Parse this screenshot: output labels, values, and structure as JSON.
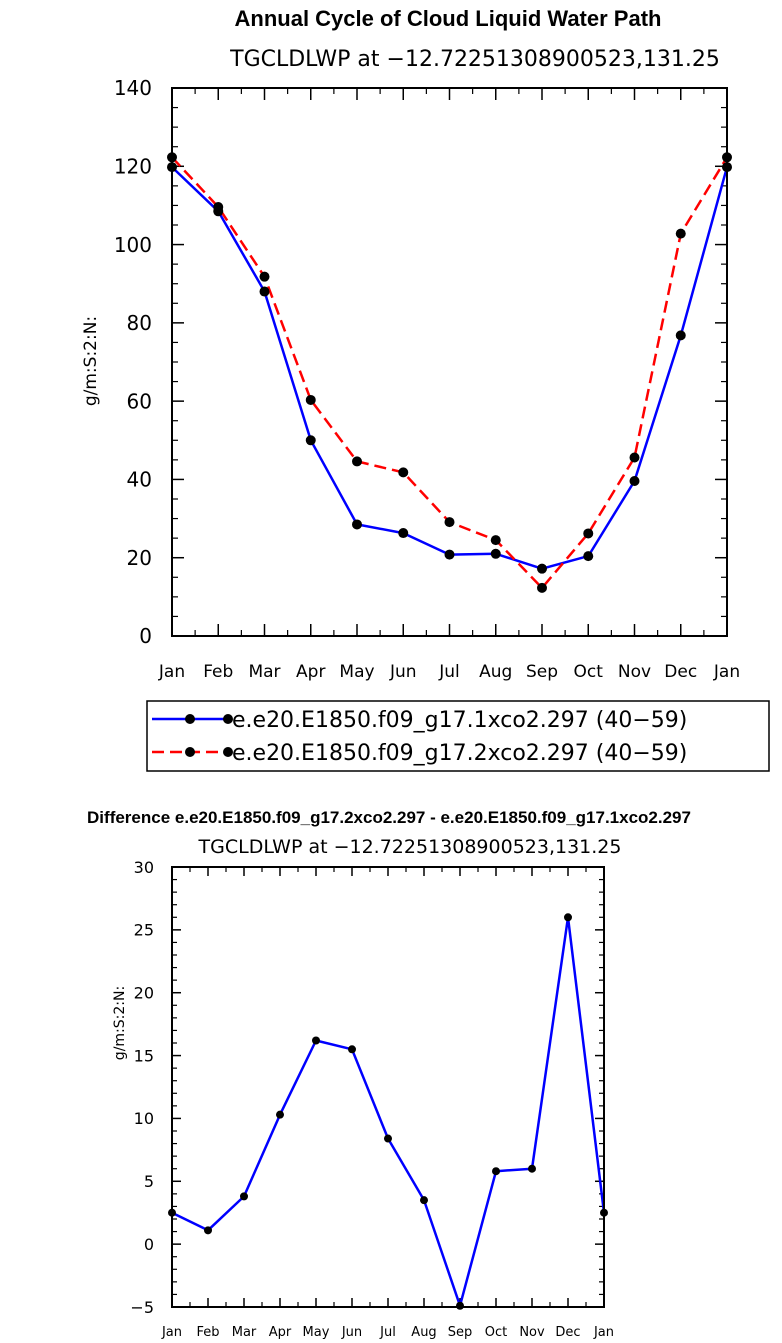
{
  "chart_data": [
    {
      "type": "line",
      "title": "Annual Cycle of Cloud Liquid Water Path",
      "subtitle": "TGCLDLWP at −12.72251308900523,131.25",
      "ylabel": "g/m:S:2:N:",
      "xlabel": "",
      "ylim": [
        0,
        140
      ],
      "yticks": [
        0,
        20,
        40,
        60,
        80,
        100,
        120,
        140
      ],
      "categories": [
        "Jan",
        "Feb",
        "Mar",
        "Apr",
        "May",
        "Jun",
        "Jul",
        "Aug",
        "Sep",
        "Oct",
        "Nov",
        "Dec",
        "Jan"
      ],
      "series": [
        {
          "name": "e.e20.E1850.f09_g17.1xco2.297 (40−59)",
          "color": "#0000ff",
          "dash": "solid",
          "values": [
            119.8,
            108.5,
            88.0,
            50.0,
            28.5,
            26.3,
            20.8,
            21.0,
            17.2,
            20.4,
            39.6,
            76.8,
            119.8
          ]
        },
        {
          "name": "e.e20.E1850.f09_g17.2xco2.297 (40−59)",
          "color": "#ff0000",
          "dash": "dashed",
          "values": [
            122.3,
            109.6,
            91.8,
            60.3,
            44.6,
            41.8,
            29.1,
            24.5,
            12.3,
            26.2,
            45.6,
            102.8,
            122.3
          ]
        }
      ]
    },
    {
      "type": "line",
      "title": "Difference e.e20.E1850.f09_g17.2xco2.297 - e.e20.E1850.f09_g17.1xco2.297",
      "subtitle": "TGCLDLWP at −12.72251308900523,131.25",
      "ylabel": "g/m:S:2:N:",
      "xlabel": "",
      "ylim": [
        -5,
        30
      ],
      "yticks": [
        -5,
        0,
        5,
        10,
        15,
        20,
        25,
        30
      ],
      "ytick_labels": [
        "−5",
        "0",
        "5",
        "10",
        "15",
        "20",
        "25",
        "30"
      ],
      "categories": [
        "Jan",
        "Feb",
        "Mar",
        "Apr",
        "May",
        "Jun",
        "Jul",
        "Aug",
        "Sep",
        "Oct",
        "Nov",
        "Dec",
        "Jan"
      ],
      "series": [
        {
          "name": "difference",
          "color": "#0000ff",
          "dash": "solid",
          "values": [
            2.5,
            1.1,
            3.8,
            10.3,
            16.2,
            15.5,
            8.4,
            3.5,
            -4.9,
            5.8,
            6.0,
            26.0,
            2.5
          ]
        }
      ]
    }
  ]
}
